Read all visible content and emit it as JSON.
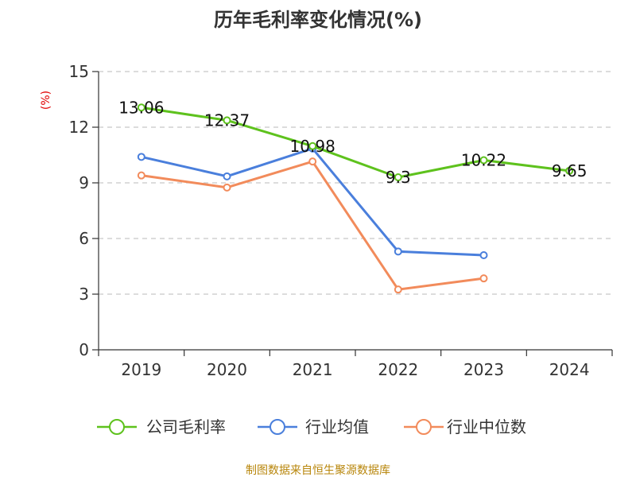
{
  "chart_data": {
    "type": "line",
    "title": "历年毛利率变化情况(%)",
    "y_unit": "(%)",
    "categories": [
      "2019",
      "2020",
      "2021",
      "2022",
      "2023",
      "2024"
    ],
    "ylim": [
      0,
      15
    ],
    "yticks": [
      "0",
      "3",
      "6",
      "9",
      "12",
      "15"
    ],
    "grid": true,
    "legend_position": "bottom",
    "series": [
      {
        "name": "公司毛利率",
        "color": "#5ec21d",
        "values": [
          13.06,
          12.37,
          10.98,
          9.3,
          10.22,
          9.65
        ],
        "labels": [
          "13.06",
          "12.37",
          "10.98",
          "9.3",
          "10.22",
          "9.65"
        ]
      },
      {
        "name": "行业均值",
        "color": "#4a7fdc",
        "values": [
          10.4,
          9.35,
          10.85,
          5.3,
          5.1,
          null
        ]
      },
      {
        "name": "行业中位数",
        "color": "#f28b5b",
        "values": [
          9.4,
          8.75,
          10.15,
          3.25,
          3.85,
          null
        ]
      }
    ]
  },
  "source": "制图数据来自恒生聚源数据库"
}
